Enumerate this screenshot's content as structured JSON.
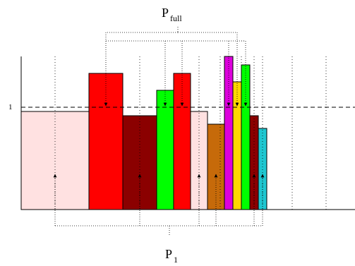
{
  "labels": {
    "top_main": "P",
    "top_sub": "full",
    "bottom_main": "P",
    "bottom_sub": "1",
    "y_tick": "1"
  },
  "colors": {
    "light_pink": "#ffe1e1",
    "red": "#ff0000",
    "dark_red": "#8b0000",
    "green": "#00ff00",
    "orange": "#c66a0a",
    "magenta": "#dd00dd",
    "yellow": "#ffd700",
    "cyan": "#1fc7d1",
    "line": "#000000"
  }
}
